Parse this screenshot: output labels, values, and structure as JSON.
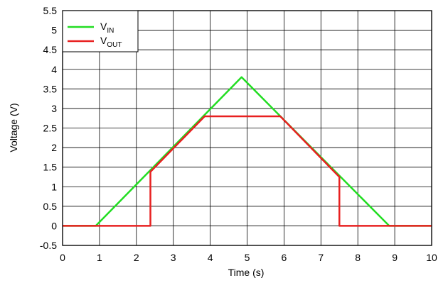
{
  "chart_data": {
    "type": "line",
    "title": "",
    "xlabel": "Time (s)",
    "ylabel": "Voltage (V)",
    "xlim": [
      0,
      10
    ],
    "ylim": [
      -0.5,
      5.5
    ],
    "xticks": [
      "0",
      "1",
      "2",
      "3",
      "4",
      "5",
      "6",
      "7",
      "8",
      "9",
      "10"
    ],
    "yticks": [
      "-0.5",
      "0",
      "0.5",
      "1",
      "1.5",
      "2",
      "2.5",
      "3",
      "3.5",
      "4",
      "4.5",
      "5",
      "5.5"
    ],
    "grid": true,
    "legend_position": "top-left",
    "series": [
      {
        "name": "V_IN",
        "legend_main": "V",
        "legend_sub": "IN",
        "color": "#22dd22",
        "x": [
          0,
          0.9,
          4.85,
          8.85,
          10
        ],
        "y": [
          0,
          0,
          3.8,
          0,
          0
        ]
      },
      {
        "name": "V_OUT",
        "legend_main": "V",
        "legend_sub": "OUT",
        "color": "#e82020",
        "x": [
          0,
          2.38,
          2.38,
          3.85,
          5.9,
          7.5,
          7.5,
          10
        ],
        "y": [
          0,
          0,
          1.38,
          2.8,
          2.8,
          1.25,
          0,
          0
        ]
      }
    ]
  }
}
